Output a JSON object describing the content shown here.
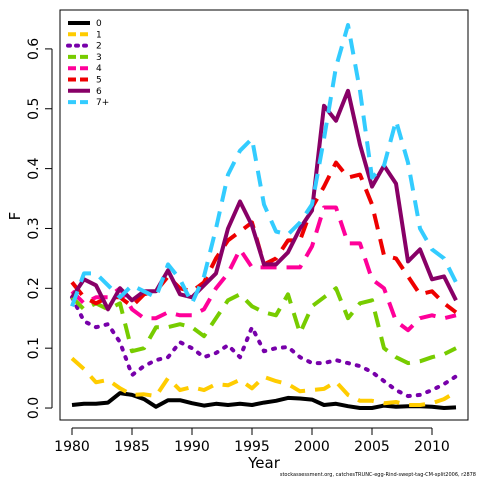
{
  "chart_data": {
    "type": "line",
    "xlabel": "Year",
    "ylabel": "F",
    "xlim": [
      1980,
      2012
    ],
    "ylim": [
      0,
      0.65
    ],
    "xticks": [
      1980,
      1985,
      1990,
      1995,
      2000,
      2005,
      2010
    ],
    "yticks": [
      "0.0",
      "0.1",
      "0.2",
      "0.3",
      "0.4",
      "0.5",
      "0.6"
    ],
    "legend_position": "top-left",
    "x": [
      1980,
      1981,
      1982,
      1983,
      1984,
      1985,
      1986,
      1987,
      1988,
      1989,
      1990,
      1991,
      1992,
      1993,
      1994,
      1995,
      1996,
      1997,
      1998,
      1999,
      2000,
      2001,
      2002,
      2003,
      2004,
      2005,
      2006,
      2007,
      2008,
      2009,
      2010,
      2011,
      2012
    ],
    "series": [
      {
        "name": "0",
        "color": "#000000",
        "dash": "solid",
        "values": [
          0.005,
          0.007,
          0.007,
          0.009,
          0.025,
          0.022,
          0.015,
          0.002,
          0.013,
          0.013,
          0.008,
          0.004,
          0.007,
          0.005,
          0.007,
          0.005,
          0.009,
          0.012,
          0.017,
          0.016,
          0.014,
          0.005,
          0.007,
          0.003,
          0.0,
          0.0,
          0.004,
          0.002,
          0.003,
          0.003,
          0.002,
          0.0,
          0.001
        ]
      },
      {
        "name": "1",
        "color": "#ffcc00",
        "dash": "dashed",
        "values": [
          0.083,
          0.065,
          0.043,
          0.047,
          0.033,
          0.022,
          0.023,
          0.02,
          0.05,
          0.03,
          0.035,
          0.03,
          0.04,
          0.038,
          0.047,
          0.033,
          0.052,
          0.045,
          0.04,
          0.028,
          0.03,
          0.032,
          0.044,
          0.022,
          0.012,
          0.012,
          0.008,
          0.01,
          0.005,
          0.005,
          0.008,
          0.015,
          0.027
        ]
      },
      {
        "name": "2",
        "color": "#7700aa",
        "dash": "dotted",
        "values": [
          0.185,
          0.145,
          0.135,
          0.14,
          0.11,
          0.055,
          0.07,
          0.08,
          0.085,
          0.11,
          0.1,
          0.085,
          0.092,
          0.105,
          0.085,
          0.135,
          0.095,
          0.1,
          0.102,
          0.085,
          0.075,
          0.075,
          0.08,
          0.075,
          0.07,
          0.06,
          0.045,
          0.03,
          0.02,
          0.022,
          0.03,
          0.04,
          0.053
        ]
      },
      {
        "name": "3",
        "color": "#77cc00",
        "dash": "dashed",
        "values": [
          0.185,
          0.165,
          0.175,
          0.165,
          0.175,
          0.095,
          0.1,
          0.135,
          0.135,
          0.14,
          0.135,
          0.12,
          0.15,
          0.18,
          0.19,
          0.17,
          0.16,
          0.155,
          0.19,
          0.125,
          0.17,
          0.185,
          0.2,
          0.15,
          0.175,
          0.18,
          0.1,
          0.085,
          0.075,
          0.078,
          0.085,
          0.09,
          0.1
        ]
      },
      {
        "name": "4",
        "color": "#ff0099",
        "dash": "dashed",
        "values": [
          0.195,
          0.175,
          0.185,
          0.185,
          0.2,
          0.165,
          0.15,
          0.15,
          0.16,
          0.155,
          0.155,
          0.165,
          0.2,
          0.225,
          0.265,
          0.235,
          0.235,
          0.235,
          0.235,
          0.235,
          0.27,
          0.335,
          0.335,
          0.275,
          0.275,
          0.215,
          0.2,
          0.145,
          0.13,
          0.15,
          0.155,
          0.15,
          0.155
        ]
      },
      {
        "name": "5",
        "color": "#ee0000",
        "dash": "dashed",
        "values": [
          0.21,
          0.185,
          0.175,
          0.185,
          0.185,
          0.17,
          0.19,
          0.195,
          0.22,
          0.2,
          0.195,
          0.21,
          0.25,
          0.28,
          0.295,
          0.31,
          0.24,
          0.25,
          0.28,
          0.28,
          0.335,
          0.37,
          0.41,
          0.385,
          0.39,
          0.34,
          0.255,
          0.25,
          0.22,
          0.19,
          0.195,
          0.175,
          0.16
        ]
      },
      {
        "name": "6",
        "color": "#880066",
        "dash": "solid",
        "values": [
          0.185,
          0.215,
          0.205,
          0.165,
          0.2,
          0.18,
          0.195,
          0.195,
          0.23,
          0.19,
          0.185,
          0.205,
          0.225,
          0.3,
          0.345,
          0.305,
          0.24,
          0.24,
          0.26,
          0.3,
          0.33,
          0.505,
          0.48,
          0.53,
          0.44,
          0.37,
          0.405,
          0.375,
          0.245,
          0.265,
          0.215,
          0.22,
          0.18
        ]
      },
      {
        "name": "7+",
        "color": "#33ccff",
        "dash": "dashed",
        "values": [
          0.17,
          0.225,
          0.225,
          0.205,
          0.185,
          0.205,
          0.195,
          0.185,
          0.24,
          0.215,
          0.175,
          0.22,
          0.3,
          0.39,
          0.43,
          0.45,
          0.34,
          0.295,
          0.29,
          0.31,
          0.34,
          0.45,
          0.57,
          0.64,
          0.53,
          0.385,
          0.405,
          0.48,
          0.41,
          0.3,
          0.265,
          0.25,
          0.21
        ]
      }
    ]
  },
  "footer_text": "stockassessment.org, catchesTRUNC-egg-Rind-swept-tag-CM-split2006, r2878"
}
